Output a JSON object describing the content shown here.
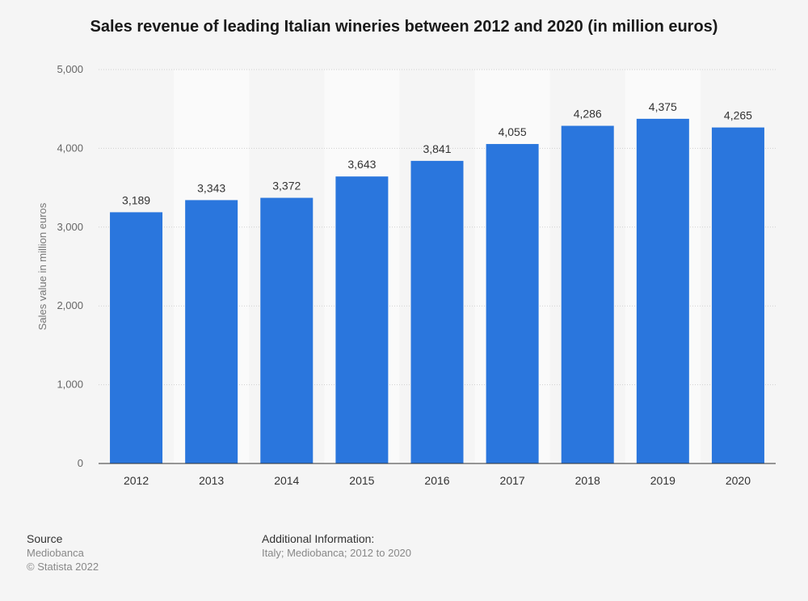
{
  "chart_data": {
    "type": "bar",
    "title": "Sales revenue of leading Italian wineries between 2012 and 2020 (in million euros)",
    "xlabel": "",
    "ylabel": "Sales value in million euros",
    "categories": [
      "2012",
      "2013",
      "2014",
      "2015",
      "2016",
      "2017",
      "2018",
      "2019",
      "2020"
    ],
    "values": [
      3189,
      3343,
      3372,
      3643,
      3841,
      4055,
      4286,
      4375,
      4265
    ],
    "data_labels": [
      "3,189",
      "3,343",
      "3,372",
      "3,643",
      "3,841",
      "4,055",
      "4,286",
      "4,375",
      "4,265"
    ],
    "ylim": [
      0,
      5000
    ],
    "yticks": [
      0,
      1000,
      2000,
      3000,
      4000,
      5000
    ],
    "ytick_labels": [
      "0",
      "1,000",
      "2,000",
      "3,000",
      "4,000",
      "5,000"
    ],
    "grid": true,
    "bar_color": "#2a76dd"
  },
  "footer": {
    "source_heading": "Source",
    "source_lines": [
      "Mediobanca",
      "© Statista 2022"
    ],
    "info_heading": "Additional Information:",
    "info_text": "Italy; Mediobanca; 2012 to 2020"
  }
}
